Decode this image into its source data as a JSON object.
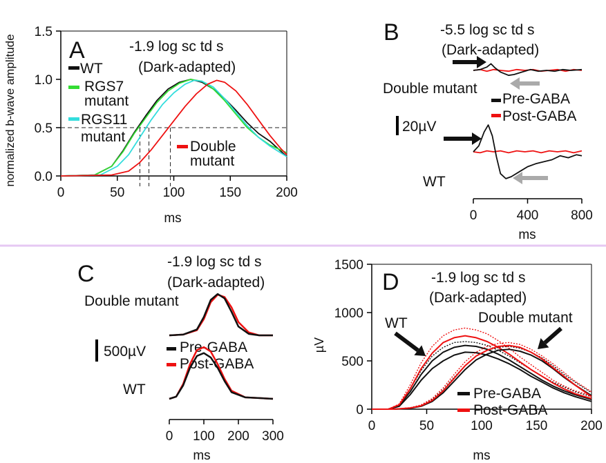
{
  "colors": {
    "black": "#111111",
    "green": "#33dd33",
    "cyan": "#33dddd",
    "red": "#ee1111",
    "gray": "#aaaaaa",
    "divider": "#e6c8f3"
  },
  "panels": {
    "A": {
      "letter": "A",
      "title1": "-1.9 log sc td s",
      "title2": "(Dark-adapted)",
      "ylabel": "normalized b-wave amplitude",
      "xlabel": "ms",
      "legend": {
        "wt": "WT",
        "rgs7_1": "RGS7",
        "rgs7_2": "mutant",
        "rgs11_1": "RGS11",
        "rgs11_2": "mutant",
        "double_1": "Double",
        "double_2": "mutant"
      }
    },
    "B": {
      "letter": "B",
      "title1": "-5.5 log sc td s",
      "title2": "(Dark-adapted)",
      "double": "Double mutant",
      "wt": "WT",
      "scale": "20µV",
      "pre": "Pre-GABA",
      "post": "Post-GABA",
      "xlabel": "ms"
    },
    "C": {
      "letter": "C",
      "title1": "-1.9 log sc td s",
      "title2": "(Dark-adapted)",
      "double": "Double mutant",
      "wt": "WT",
      "scale": "500µV",
      "pre": "Pre-GABA",
      "post": "Post-GABA",
      "xlabel": "ms"
    },
    "D": {
      "letter": "D",
      "title1": "-1.9 log sc td s",
      "title2": "(Dark-adapted)",
      "ylabel": "µV",
      "xlabel": "ms",
      "wt": "WT",
      "double": "Double mutant",
      "pre": "Pre-GABA",
      "post": "Post-GABA"
    }
  },
  "chart_data": [
    {
      "panel": "A",
      "type": "line",
      "xlim": [
        0,
        200
      ],
      "ylim": [
        0,
        1.5
      ],
      "x_ticks": [
        0,
        50,
        100,
        150,
        200
      ],
      "x_tick_labels": [
        "0",
        "50",
        "100",
        "150",
        "200"
      ],
      "y_ticks": [
        0,
        0.5,
        1,
        1.5
      ],
      "y_tick_labels": [
        "0.0",
        "0.5",
        "1.0",
        "1.5"
      ],
      "threshold": 0.5,
      "half_max_times": [
        70,
        78,
        97
      ],
      "series": [
        {
          "name": "WT",
          "color": "black",
          "x": [
            0,
            30,
            45,
            55,
            65,
            75,
            85,
            95,
            105,
            115,
            125,
            135,
            145,
            155,
            165,
            175,
            185,
            200
          ],
          "y": [
            0,
            0.01,
            0.1,
            0.26,
            0.45,
            0.62,
            0.78,
            0.9,
            0.97,
            1.0,
            0.97,
            0.9,
            0.8,
            0.68,
            0.55,
            0.44,
            0.36,
            0.2
          ]
        },
        {
          "name": "RGS7 mutant",
          "color": "green",
          "x": [
            0,
            30,
            45,
            55,
            65,
            75,
            85,
            95,
            105,
            115,
            125,
            135,
            145,
            155,
            165,
            175,
            185,
            200
          ],
          "y": [
            0,
            0.01,
            0.1,
            0.25,
            0.44,
            0.6,
            0.76,
            0.88,
            0.96,
            1.0,
            0.98,
            0.9,
            0.78,
            0.64,
            0.5,
            0.4,
            0.32,
            0.24
          ]
        },
        {
          "name": "RGS11 mutant",
          "color": "cyan",
          "x": [
            0,
            35,
            50,
            60,
            70,
            80,
            90,
            100,
            110,
            118,
            125,
            135,
            145,
            155,
            165,
            175,
            185,
            200
          ],
          "y": [
            0,
            0.01,
            0.1,
            0.22,
            0.4,
            0.58,
            0.74,
            0.86,
            0.95,
            0.99,
            0.98,
            0.92,
            0.8,
            0.66,
            0.52,
            0.4,
            0.31,
            0.2
          ]
        },
        {
          "name": "Double mutant",
          "color": "red",
          "x": [
            0,
            45,
            60,
            70,
            80,
            90,
            100,
            110,
            120,
            130,
            138,
            145,
            155,
            165,
            175,
            185,
            195,
            200
          ],
          "y": [
            0,
            0.01,
            0.05,
            0.14,
            0.27,
            0.42,
            0.57,
            0.72,
            0.85,
            0.95,
            0.99,
            0.97,
            0.88,
            0.74,
            0.58,
            0.42,
            0.28,
            0.22
          ]
        }
      ]
    },
    {
      "panel": "B",
      "type": "line",
      "xlim": [
        0,
        800
      ],
      "x_ticks": [
        0,
        400,
        800
      ],
      "x_tick_labels": [
        "0",
        "400",
        "800"
      ],
      "scale_bar": "20µV",
      "series": [
        {
          "name": "Double mutant Pre-GABA",
          "color": "black",
          "x": [
            0,
            50,
            100,
            130,
            160,
            200,
            260,
            300,
            360,
            420,
            480,
            540,
            600,
            660,
            720,
            800
          ],
          "y": [
            0,
            1,
            4,
            8,
            3,
            -2,
            -6,
            -5,
            -2,
            1,
            -1,
            0,
            -1,
            1,
            0,
            1
          ]
        },
        {
          "name": "Double mutant Post-GABA",
          "color": "red",
          "x": [
            0,
            50,
            100,
            150,
            200,
            260,
            320,
            380,
            440,
            500,
            560,
            620,
            680,
            740,
            800
          ],
          "y": [
            0,
            1,
            -1,
            1,
            0,
            -1,
            1,
            0,
            1,
            -1,
            0,
            1,
            -1,
            1,
            0
          ]
        },
        {
          "name": "WT Pre-GABA",
          "color": "black",
          "x": [
            0,
            40,
            80,
            110,
            140,
            170,
            200,
            240,
            280,
            340,
            400,
            460,
            520,
            580,
            640,
            700,
            760,
            800
          ],
          "y": [
            0,
            6,
            20,
            27,
            16,
            -5,
            -22,
            -27,
            -25,
            -20,
            -15,
            -12,
            -10,
            -8,
            -4,
            -6,
            -3,
            -4
          ]
        },
        {
          "name": "WT Post-GABA",
          "color": "red",
          "x": [
            0,
            50,
            100,
            150,
            200,
            260,
            320,
            380,
            440,
            500,
            560,
            620,
            680,
            740,
            800
          ],
          "y": [
            0,
            -1,
            1,
            0,
            1,
            -1,
            1,
            0,
            1,
            -1,
            1,
            0,
            1,
            -1,
            1
          ]
        }
      ]
    },
    {
      "panel": "C",
      "type": "line",
      "xlim": [
        0,
        300
      ],
      "x_ticks": [
        0,
        100,
        200,
        300
      ],
      "x_tick_labels": [
        "0",
        "100",
        "200",
        "300"
      ],
      "scale_bar": "500µV",
      "series": [
        {
          "name": "Double mutant Pre-GABA",
          "color": "black",
          "x": [
            0,
            40,
            80,
            100,
            120,
            140,
            160,
            180,
            200,
            230,
            260,
            300
          ],
          "y": [
            0,
            10,
            80,
            250,
            480,
            560,
            500,
            320,
            120,
            20,
            0,
            0
          ]
        },
        {
          "name": "Double mutant Post-GABA",
          "color": "red",
          "x": [
            0,
            40,
            80,
            100,
            120,
            140,
            160,
            180,
            200,
            230,
            260,
            300
          ],
          "y": [
            0,
            10,
            70,
            220,
            450,
            550,
            520,
            380,
            180,
            40,
            0,
            0
          ]
        },
        {
          "name": "WT Pre-GABA",
          "color": "black",
          "x": [
            0,
            20,
            40,
            60,
            80,
            100,
            120,
            140,
            160,
            180,
            220,
            260,
            300
          ],
          "y": [
            0,
            30,
            180,
            420,
            580,
            620,
            560,
            420,
            240,
            90,
            20,
            10,
            0
          ]
        },
        {
          "name": "WT Post-GABA",
          "color": "red",
          "x": [
            0,
            20,
            40,
            60,
            80,
            100,
            120,
            140,
            160,
            180,
            220,
            260,
            300
          ],
          "y": [
            0,
            30,
            200,
            470,
            660,
            700,
            640,
            470,
            270,
            110,
            20,
            10,
            0
          ]
        }
      ]
    },
    {
      "panel": "D",
      "type": "line",
      "xlim": [
        0,
        200
      ],
      "ylim": [
        0,
        1500
      ],
      "x_ticks": [
        0,
        50,
        100,
        150,
        200
      ],
      "x_tick_labels": [
        "0",
        "50",
        "100",
        "150",
        "200"
      ],
      "y_ticks": [
        0,
        500,
        1000,
        1500
      ],
      "y_tick_labels": [
        "0",
        "500",
        "1000",
        "1500"
      ],
      "series": [
        {
          "name": "WT Pre-GABA",
          "color": "black",
          "dashed": false,
          "x": [
            0,
            15,
            25,
            35,
            45,
            55,
            65,
            75,
            85,
            95,
            105,
            115,
            125,
            135,
            145,
            155,
            165,
            175,
            185,
            200
          ],
          "y": [
            0,
            0,
            30,
            150,
            300,
            420,
            500,
            560,
            590,
            585,
            560,
            520,
            470,
            410,
            340,
            280,
            220,
            170,
            130,
            80
          ]
        },
        {
          "name": "WT Pre-GABA",
          "color": "black",
          "dashed": false,
          "x": [
            0,
            15,
            25,
            35,
            45,
            55,
            65,
            75,
            85,
            95,
            105,
            115,
            125,
            135,
            145,
            155,
            165,
            175,
            185,
            200
          ],
          "y": [
            0,
            0,
            40,
            180,
            360,
            500,
            590,
            640,
            660,
            650,
            620,
            570,
            510,
            440,
            370,
            300,
            240,
            190,
            150,
            100
          ]
        },
        {
          "name": "WT Pre-GABA",
          "color": "black",
          "dashed": true,
          "x": [
            0,
            15,
            25,
            35,
            45,
            55,
            65,
            75,
            85,
            95,
            105,
            115,
            125,
            135,
            145,
            155,
            165,
            175,
            185,
            200
          ],
          "y": [
            0,
            0,
            50,
            210,
            400,
            550,
            640,
            690,
            700,
            690,
            660,
            610,
            550,
            480,
            410,
            340,
            280,
            230,
            180,
            130
          ]
        },
        {
          "name": "WT Post-GABA",
          "color": "red",
          "dashed": false,
          "x": [
            0,
            15,
            25,
            35,
            45,
            55,
            65,
            75,
            85,
            95,
            105,
            115,
            125,
            135,
            145,
            155,
            165,
            175,
            185,
            200
          ],
          "y": [
            0,
            0,
            45,
            210,
            420,
            580,
            690,
            740,
            760,
            740,
            700,
            640,
            570,
            490,
            410,
            340,
            270,
            210,
            160,
            110
          ]
        },
        {
          "name": "WT Post-GABA",
          "color": "red",
          "dashed": true,
          "x": [
            0,
            15,
            25,
            35,
            45,
            55,
            65,
            75,
            85,
            95,
            105,
            115,
            125,
            135,
            145,
            155,
            165,
            175,
            185,
            200
          ],
          "y": [
            0,
            0,
            55,
            250,
            480,
            650,
            760,
            820,
            840,
            820,
            780,
            710,
            630,
            540,
            460,
            380,
            300,
            240,
            190,
            140
          ]
        },
        {
          "name": "Double mutant Pre-GABA",
          "color": "black",
          "dashed": false,
          "x": [
            0,
            20,
            35,
            45,
            55,
            65,
            75,
            85,
            95,
            105,
            115,
            125,
            135,
            145,
            155,
            165,
            175,
            185,
            200
          ],
          "y": [
            0,
            0,
            10,
            30,
            80,
            170,
            290,
            410,
            510,
            570,
            610,
            620,
            600,
            560,
            500,
            420,
            330,
            250,
            140
          ]
        },
        {
          "name": "Double mutant Pre-GABA",
          "color": "black",
          "dashed": true,
          "x": [
            0,
            20,
            35,
            45,
            55,
            65,
            75,
            85,
            95,
            105,
            115,
            125,
            135,
            145,
            155,
            165,
            175,
            185,
            200
          ],
          "y": [
            0,
            0,
            15,
            40,
            100,
            200,
            330,
            450,
            550,
            610,
            640,
            650,
            630,
            590,
            530,
            450,
            360,
            280,
            170
          ]
        },
        {
          "name": "Double mutant Post-GABA",
          "color": "red",
          "dashed": false,
          "x": [
            0,
            20,
            35,
            45,
            55,
            65,
            75,
            85,
            95,
            105,
            115,
            125,
            135,
            145,
            155,
            165,
            175,
            185,
            200
          ],
          "y": [
            0,
            0,
            12,
            35,
            90,
            190,
            320,
            450,
            550,
            610,
            650,
            660,
            640,
            590,
            520,
            430,
            340,
            250,
            130
          ]
        },
        {
          "name": "Double mutant Post-GABA",
          "color": "red",
          "dashed": true,
          "x": [
            0,
            20,
            35,
            45,
            55,
            65,
            75,
            85,
            95,
            105,
            115,
            125,
            135,
            145,
            155,
            165,
            175,
            185,
            200
          ],
          "y": [
            0,
            0,
            15,
            45,
            110,
            220,
            360,
            490,
            590,
            650,
            680,
            690,
            670,
            620,
            550,
            470,
            380,
            290,
            180
          ]
        }
      ]
    }
  ]
}
